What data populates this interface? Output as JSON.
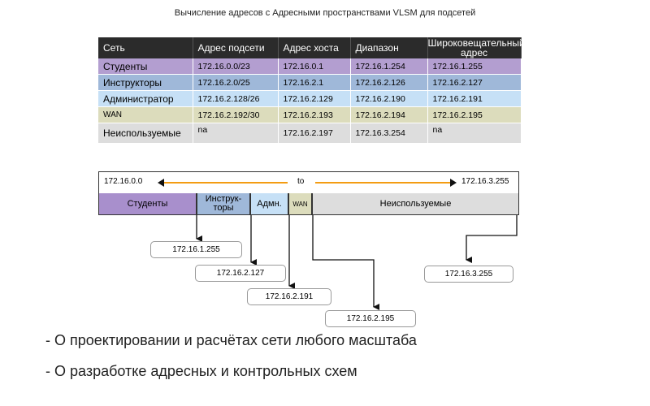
{
  "title": "Вычисление адресов с Адресными пространствами VLSM для подсетей",
  "table": {
    "headers": [
      "Сеть",
      "Адрес подсети",
      "Адрес хоста",
      "Диапазон",
      "Широковещательный адрес"
    ],
    "rows": [
      [
        "Студенты",
        "172.16.0.0/23",
        "172.16.0.1",
        "172.16.1.254",
        "172.16.1.255"
      ],
      [
        "Инструкторы",
        "172.16.2.0/25",
        "172.16.2.1",
        "172.16.2.126",
        "172.16.2.127"
      ],
      [
        "Администратор",
        "172.16.2.128/26",
        "172.16.2.129",
        "172.16.2.190",
        "172.16.2.191"
      ],
      [
        "WAN",
        "172.16.2.192/30",
        "172.16.2.193",
        "172.16.2.194",
        "172.16.2.195"
      ],
      [
        "Неиспользуемые",
        "na",
        "172.16.2.197",
        "172.16.3.254",
        "na"
      ]
    ]
  },
  "range": {
    "start": "172.16.0.0",
    "to": "to",
    "end": "172.16.3.255"
  },
  "segments": [
    "Студенты",
    "Инструк-\nторы",
    "Адмн.",
    "WAN",
    "Неиспользуемые"
  ],
  "broadcasts": [
    "172.16.1.255",
    "172.16.2.127",
    "172.16.2.191",
    "172.16.2.195",
    "172.16.3.255"
  ],
  "bullets": [
    "- О проектировании и расчётах сети любого масштаба",
    "- О разработке адресных и контрольных схем"
  ],
  "colors": {
    "students": "#a88fcc",
    "instructors": "#9fb8d9",
    "admin": "#c6e0f6",
    "wan": "#dcdcbc",
    "unused": "#dddddd",
    "header": "#2b2b2b",
    "range_line": "#f39c12"
  }
}
